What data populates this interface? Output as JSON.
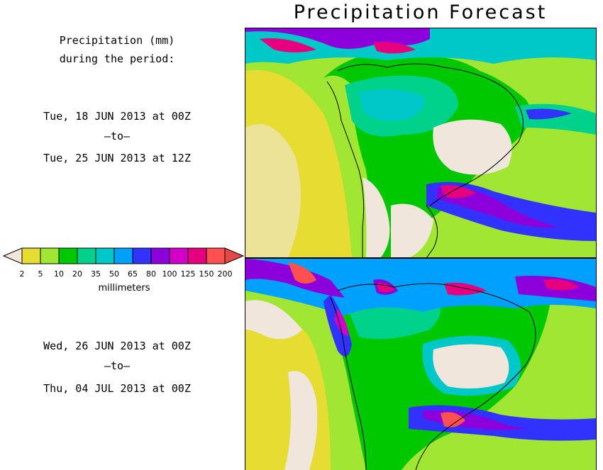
{
  "title": "Precipitation Forecast",
  "header": {
    "line1": "Precipitation (mm)",
    "line2": "during the period:"
  },
  "periods": [
    {
      "start": "Tue, 18 JUN 2013 at 00Z",
      "sep": "–to–",
      "end": "Tue, 25 JUN 2013 at 12Z"
    },
    {
      "start": "Wed, 26 JUN 2013 at 00Z",
      "sep": "–to–",
      "end": "Thu, 04 JUL 2013 at 00Z"
    }
  ],
  "legend": {
    "unit": "millimeters",
    "ticks": [
      "2",
      "5",
      "10",
      "20",
      "35",
      "50",
      "65",
      "80",
      "100",
      "125",
      "150",
      "200"
    ],
    "colors": [
      "#f0e6dc",
      "#e6dc32",
      "#a0e632",
      "#00c800",
      "#00d28c",
      "#00c8c8",
      "#00a0ff",
      "#3232ff",
      "#8c00dc",
      "#d200c8",
      "#e6007f",
      "#ff5050",
      "#ff5050"
    ],
    "under_color": "#f0e6dc",
    "over_color": "#e64646"
  },
  "icons": {
    "left_arrow": "legend-underflow-arrow",
    "right_arrow": "legend-overflow-arrow"
  }
}
